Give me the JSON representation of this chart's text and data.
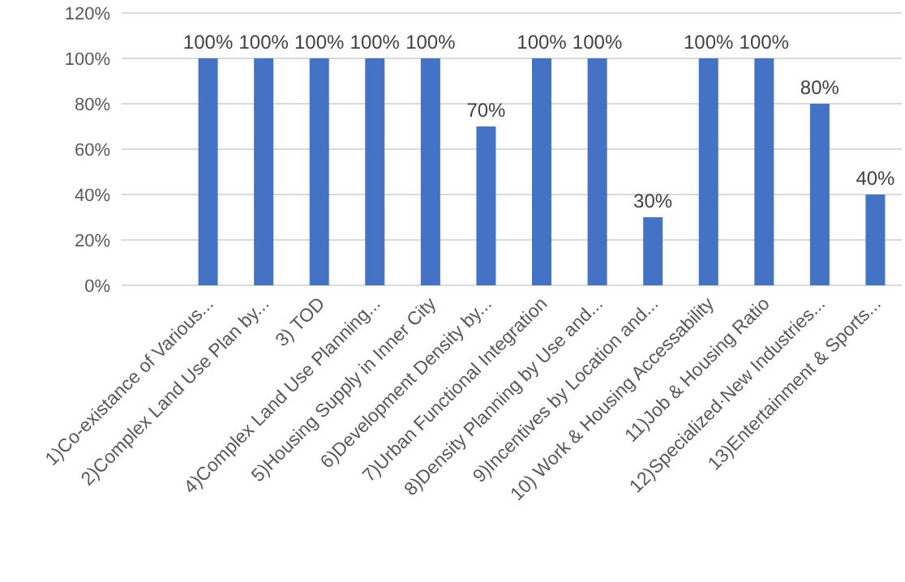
{
  "chart_data": {
    "type": "bar",
    "categories": [
      "1)Co-existance of Various...",
      "2)Complex Land Use Plan by...",
      "3) TOD",
      "4)Complex Land Use Planning...",
      "5)Housing Supply in Inner City",
      "6)Development Density by...",
      "7)Urban Functional Integration",
      "8)Density Planning by Use and...",
      "9)Incentives by Location and...",
      "10) Work & Housing Accessability",
      "11)Job & Housing Ratio",
      "12)Specialized·New Industries...",
      "13)Entertainment & Sports..."
    ],
    "values": [
      100,
      100,
      100,
      100,
      100,
      70,
      100,
      100,
      30,
      100,
      100,
      80,
      40
    ],
    "value_labels": [
      "100%",
      "100%",
      "100%",
      "100%",
      "100%",
      "70%",
      "100%",
      "100%",
      "30%",
      "100%",
      "100%",
      "80%",
      "40%"
    ],
    "color": "#4472c4",
    "ylim": [
      0,
      120
    ],
    "yticks": [
      {
        "value": 0,
        "label": "0%"
      },
      {
        "value": 20,
        "label": "20%"
      },
      {
        "value": 40,
        "label": "40%"
      },
      {
        "value": 60,
        "label": "60%"
      },
      {
        "value": 80,
        "label": "80%"
      },
      {
        "value": 100,
        "label": "100%"
      },
      {
        "value": 120,
        "label": "120%"
      }
    ],
    "grid": "y"
  }
}
